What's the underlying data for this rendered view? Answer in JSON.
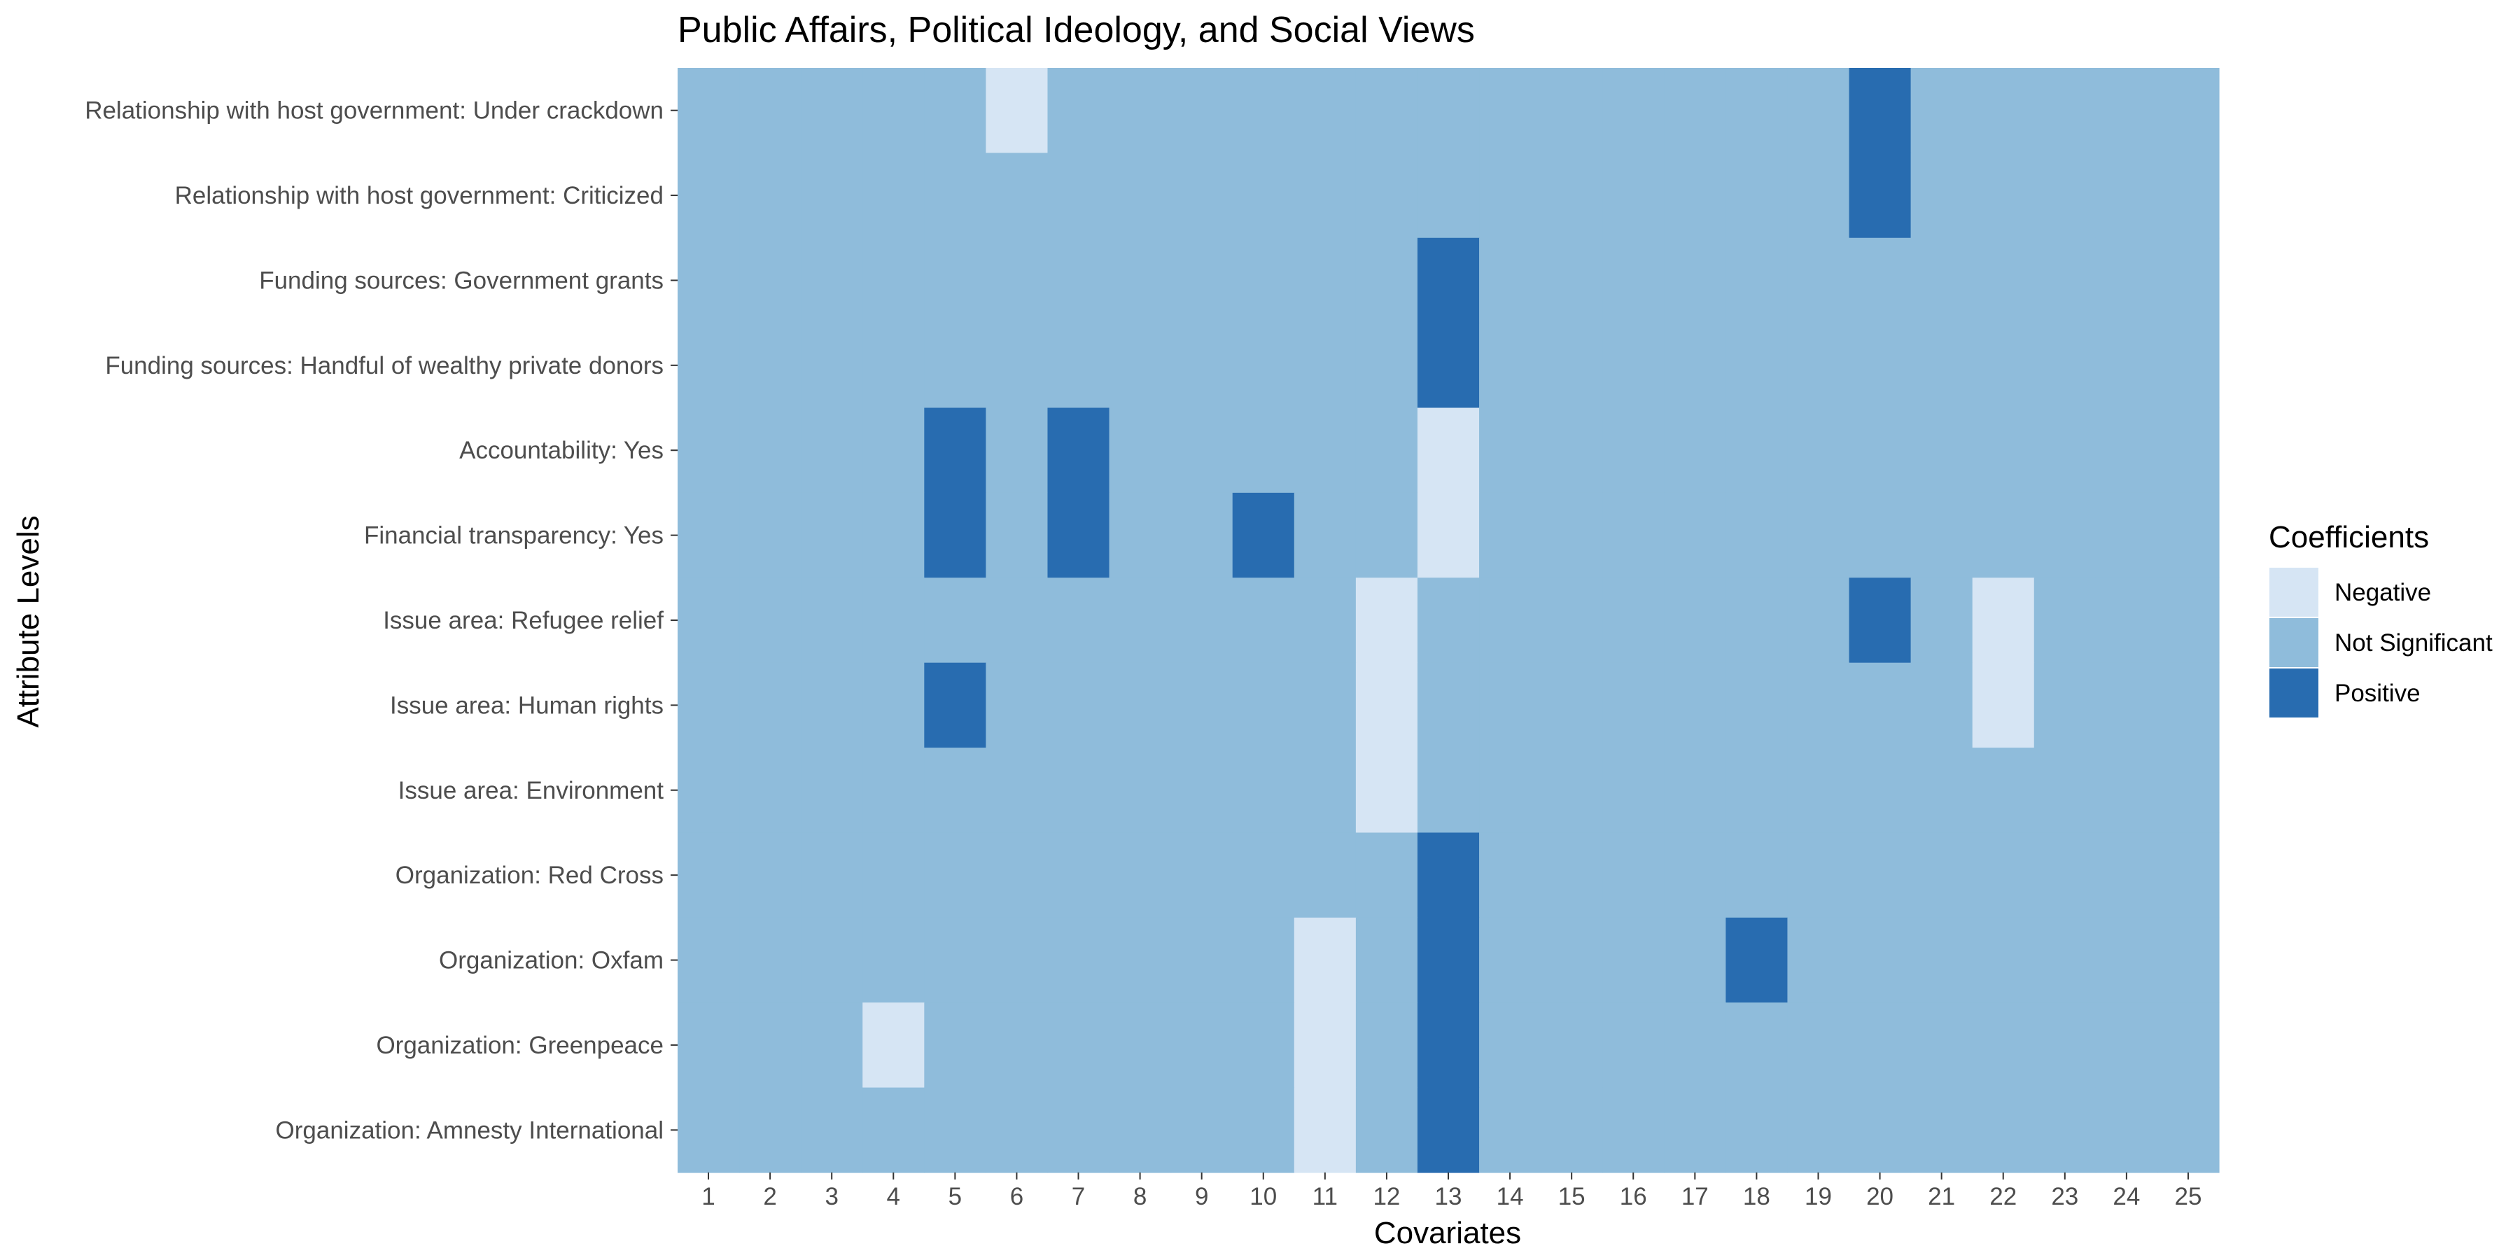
{
  "chart_data": {
    "type": "heatmap",
    "title": "Public Affairs, Political Ideology, and Social Views",
    "xlabel": "Covariates",
    "ylabel": "Attribute Levels",
    "x": [
      "1",
      "2",
      "3",
      "4",
      "5",
      "6",
      "7",
      "8",
      "9",
      "10",
      "11",
      "12",
      "13",
      "14",
      "15",
      "16",
      "17",
      "18",
      "19",
      "20",
      "21",
      "22",
      "23",
      "24",
      "25"
    ],
    "y": [
      "Relationship with host government: Under crackdown",
      "Relationship with host government: Criticized",
      "Funding sources: Government grants",
      "Funding sources: Handful of wealthy private donors",
      "Accountability: Yes",
      "Financial transparency: Yes",
      "Issue area: Refugee relief",
      "Issue area: Human rights",
      "Issue area: Environment",
      "Organization: Red Cross",
      "Organization: Oxfam",
      "Organization: Greenpeace",
      "Organization: Amnesty International"
    ],
    "values": [
      [
        0,
        0,
        0,
        0,
        0,
        -1,
        0,
        0,
        0,
        0,
        0,
        0,
        0,
        0,
        0,
        0,
        0,
        0,
        0,
        1,
        0,
        0,
        0,
        0,
        0
      ],
      [
        0,
        0,
        0,
        0,
        0,
        0,
        0,
        0,
        0,
        0,
        0,
        0,
        0,
        0,
        0,
        0,
        0,
        0,
        0,
        1,
        0,
        0,
        0,
        0,
        0
      ],
      [
        0,
        0,
        0,
        0,
        0,
        0,
        0,
        0,
        0,
        0,
        0,
        0,
        1,
        0,
        0,
        0,
        0,
        0,
        0,
        0,
        0,
        0,
        0,
        0,
        0
      ],
      [
        0,
        0,
        0,
        0,
        0,
        0,
        0,
        0,
        0,
        0,
        0,
        0,
        1,
        0,
        0,
        0,
        0,
        0,
        0,
        0,
        0,
        0,
        0,
        0,
        0
      ],
      [
        0,
        0,
        0,
        0,
        1,
        0,
        1,
        0,
        0,
        0,
        0,
        0,
        -1,
        0,
        0,
        0,
        0,
        0,
        0,
        0,
        0,
        0,
        0,
        0,
        0
      ],
      [
        0,
        0,
        0,
        0,
        1,
        0,
        1,
        0,
        0,
        1,
        0,
        0,
        -1,
        0,
        0,
        0,
        0,
        0,
        0,
        0,
        0,
        0,
        0,
        0,
        0
      ],
      [
        0,
        0,
        0,
        0,
        0,
        0,
        0,
        0,
        0,
        0,
        0,
        -1,
        0,
        0,
        0,
        0,
        0,
        0,
        0,
        1,
        0,
        -1,
        0,
        0,
        0
      ],
      [
        0,
        0,
        0,
        0,
        1,
        0,
        0,
        0,
        0,
        0,
        0,
        -1,
        0,
        0,
        0,
        0,
        0,
        0,
        0,
        0,
        0,
        -1,
        0,
        0,
        0
      ],
      [
        0,
        0,
        0,
        0,
        0,
        0,
        0,
        0,
        0,
        0,
        0,
        -1,
        0,
        0,
        0,
        0,
        0,
        0,
        0,
        0,
        0,
        0,
        0,
        0,
        0
      ],
      [
        0,
        0,
        0,
        0,
        0,
        0,
        0,
        0,
        0,
        0,
        0,
        0,
        1,
        0,
        0,
        0,
        0,
        0,
        0,
        0,
        0,
        0,
        0,
        0,
        0
      ],
      [
        0,
        0,
        0,
        0,
        0,
        0,
        0,
        0,
        0,
        0,
        -1,
        0,
        1,
        0,
        0,
        0,
        0,
        1,
        0,
        0,
        0,
        0,
        0,
        0,
        0
      ],
      [
        0,
        0,
        0,
        -1,
        0,
        0,
        0,
        0,
        0,
        0,
        -1,
        0,
        1,
        0,
        0,
        0,
        0,
        0,
        0,
        0,
        0,
        0,
        0,
        0,
        0
      ],
      [
        0,
        0,
        0,
        0,
        0,
        0,
        0,
        0,
        0,
        0,
        -1,
        0,
        1,
        0,
        0,
        0,
        0,
        0,
        0,
        0,
        0,
        0,
        0,
        0,
        0
      ]
    ],
    "legend": {
      "title": "Coefficients",
      "position": "right",
      "entries": [
        {
          "label": "Negative",
          "value": -1,
          "color": "#d6e5f4"
        },
        {
          "label": "Not Significant",
          "value": 0,
          "color": "#8fbcdb"
        },
        {
          "label": "Positive",
          "value": 1,
          "color": "#286cb0"
        }
      ]
    },
    "grid": false
  }
}
